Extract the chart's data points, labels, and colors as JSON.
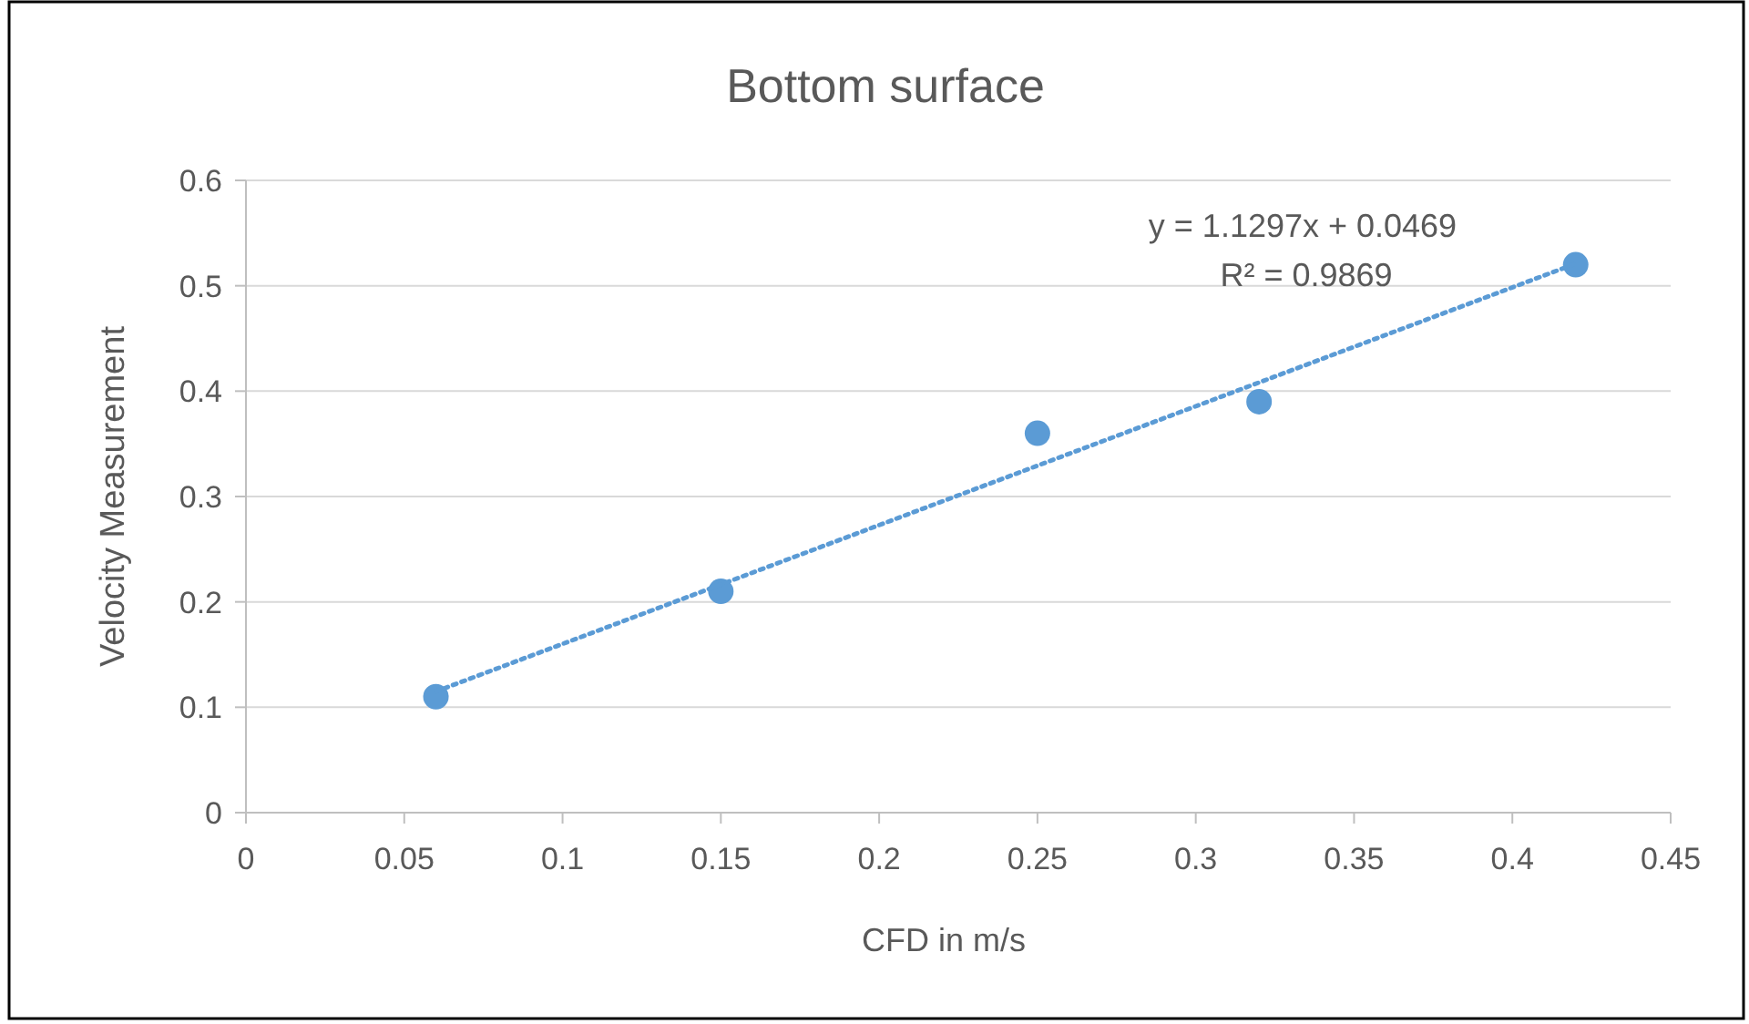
{
  "chart_data": {
    "type": "scatter",
    "title": "Bottom surface",
    "xlabel": "CFD in m/s",
    "ylabel": "Velocity Measurement",
    "xlim": [
      0,
      0.45
    ],
    "xticks": [
      0,
      0.05,
      0.1,
      0.15,
      0.2,
      0.25,
      0.3,
      0.35,
      0.4,
      0.45
    ],
    "ylim": [
      0,
      0.6
    ],
    "yticks": [
      0,
      0.1,
      0.2,
      0.3,
      0.4,
      0.5,
      0.6
    ],
    "grid": "y",
    "series": [
      {
        "color": "#5b9bd5",
        "marker": "circle",
        "x": [
          0.06,
          0.15,
          0.25,
          0.32,
          0.42
        ],
        "values": [
          0.11,
          0.21,
          0.36,
          0.39,
          0.52
        ]
      },
      {
        "type": "line",
        "color": "#5b9bd5",
        "line_style": "dotted",
        "marker": "none",
        "x": [
          0.06,
          0.42
        ],
        "values": [
          0.115,
          0.521
        ]
      }
    ],
    "annotations": [
      "y = 1.1297x + 0.0469",
      "R² = 0.9869"
    ]
  }
}
